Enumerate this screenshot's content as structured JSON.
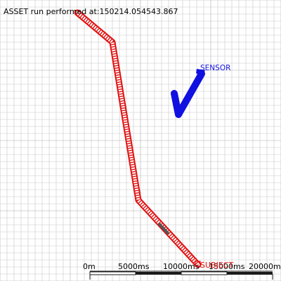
{
  "header": {
    "run_label": "ASSET run performed at:150214.054543.867"
  },
  "sensor": {
    "label": "SENSOR",
    "color": "#1010e0"
  },
  "subject": {
    "label": "SUBJECT",
    "color": "#e01010"
  },
  "grid": {
    "minor_color": "#c8c8c8",
    "major_color": "#aaaaaa"
  },
  "scale_bar": {
    "ticks": [
      "0m",
      "5000ms",
      "10000ms",
      "15000ms",
      "20000ms"
    ]
  },
  "colors": {
    "background": "#ffffff",
    "path": "#e01010",
    "track": "#1010e0",
    "text": "#000000"
  }
}
